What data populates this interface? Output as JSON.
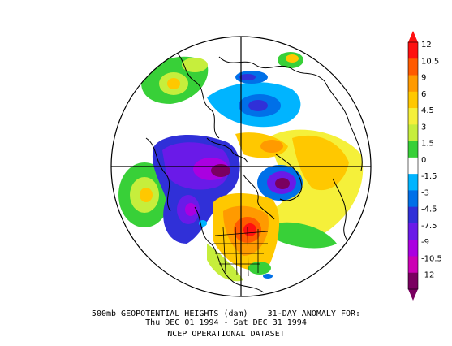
{
  "caption": {
    "line1": "500mb GEOPOTENTIAL HEIGHTS (dam)    31-DAY ANOMALY FOR:",
    "line2": "Thu DEC 01 1994 - Sat DEC 31 1994",
    "line3": "NCEP OPERATIONAL DATASET"
  },
  "colorbar": {
    "labels": [
      "12",
      "10.5",
      "9",
      "6",
      "4.5",
      "3",
      "1.5",
      "0",
      "-1.5",
      "-3",
      "-4.5",
      "-7.5",
      "-9",
      "-10.5",
      "-12"
    ],
    "colors": [
      "#ff1010",
      "#ff5a00",
      "#ff9a00",
      "#ffc800",
      "#f5f03a",
      "#c6ee3c",
      "#38d038",
      "#ffffff",
      "#00b4ff",
      "#0070e8",
      "#3030d8",
      "#6a1ae8",
      "#aa00e0",
      "#cc00b4",
      "#7a0060"
    ]
  },
  "map": {
    "projection": "north-polar-stereographic",
    "features": [
      "coastlines",
      "us-state-boundaries",
      "meridian-grid"
    ]
  }
}
